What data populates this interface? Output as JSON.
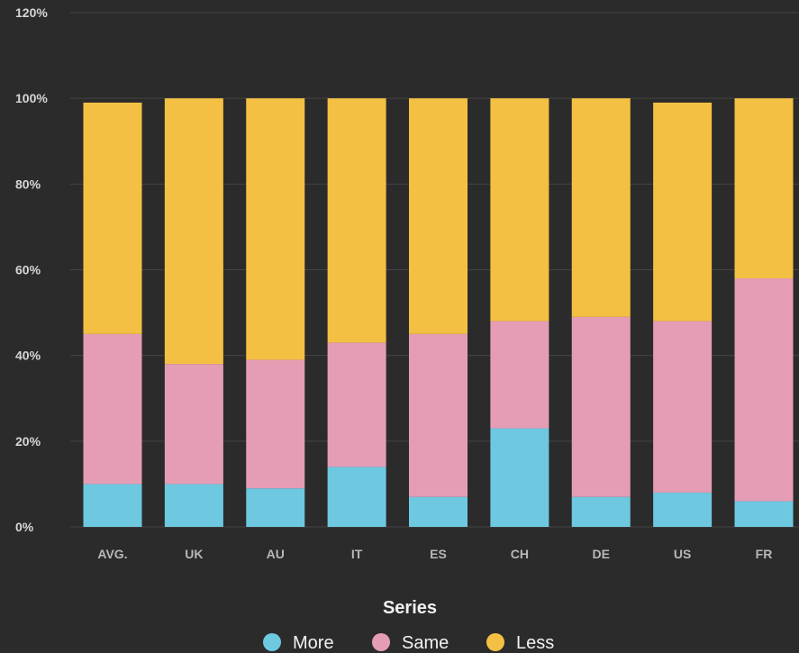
{
  "chart_data": {
    "type": "bar",
    "stacked": true,
    "categories": [
      "AVG.",
      "UK",
      "AU",
      "IT",
      "ES",
      "CH",
      "DE",
      "US",
      "FR"
    ],
    "series": [
      {
        "name": "More",
        "color": "#6ec8e0",
        "values": [
          10,
          10,
          9,
          14,
          7,
          23,
          7,
          8,
          6
        ]
      },
      {
        "name": "Same",
        "color": "#e59db6",
        "values": [
          35,
          28,
          30,
          29,
          38,
          25,
          42,
          40,
          52
        ]
      },
      {
        "name": "Less",
        "color": "#f4c043",
        "values": [
          54,
          62,
          61,
          57,
          55,
          52,
          51,
          51,
          42
        ]
      }
    ],
    "ylim": [
      0,
      120
    ],
    "yticks": [
      0,
      20,
      40,
      60,
      80,
      100,
      120
    ],
    "ytick_labels": [
      "0%",
      "20%",
      "40%",
      "60%",
      "80%",
      "100%",
      "120%"
    ],
    "grid": true,
    "legend": {
      "title": "Series",
      "position": "bottom"
    }
  }
}
